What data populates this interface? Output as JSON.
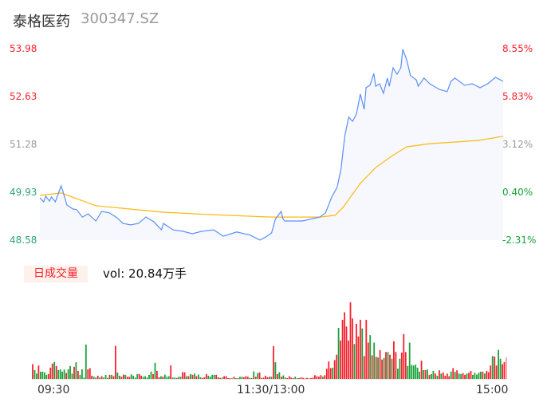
{
  "header": {
    "name": "泰格医药",
    "code": "300347.SZ"
  },
  "colors": {
    "up": "#f5222d",
    "down": "#19a33a",
    "flat": "#999999",
    "left_down": "#2ea27a",
    "price_line": "#5b8ff9",
    "avg_line": "#fbb911",
    "area": "#f6f8fe"
  },
  "volume": {
    "label": "日成交量",
    "summary": "vol: 20.84万手"
  },
  "chart_data": {
    "type": "line",
    "price_axis": {
      "ticks": [
        "53.98",
        "52.63",
        "51.28",
        "49.93",
        "48.58"
      ],
      "range": [
        48.58,
        53.98
      ]
    },
    "pct_axis": {
      "ticks": [
        "8.55%",
        "5.83%",
        "3.12%",
        "0.40%",
        "-2.31%"
      ]
    },
    "x_ticks": [
      "09:30",
      "11:30/13:00",
      "15:00"
    ],
    "price": [
      [
        "09:30",
        49.77
      ],
      [
        "09:32",
        49.66
      ],
      [
        "09:33",
        49.82
      ],
      [
        "09:35",
        49.68
      ],
      [
        "09:36",
        49.8
      ],
      [
        "09:38",
        49.66
      ],
      [
        "09:41",
        50.11
      ],
      [
        "09:42",
        49.95
      ],
      [
        "09:44",
        49.57
      ],
      [
        "09:47",
        49.46
      ],
      [
        "09:49",
        49.44
      ],
      [
        "09:52",
        49.23
      ],
      [
        "09:55",
        49.32
      ],
      [
        "09:59",
        49.12
      ],
      [
        "10:02",
        49.39
      ],
      [
        "10:06",
        49.35
      ],
      [
        "10:10",
        49.21
      ],
      [
        "10:13",
        49.05
      ],
      [
        "10:17",
        49.01
      ],
      [
        "10:21",
        49.05
      ],
      [
        "10:25",
        49.23
      ],
      [
        "10:29",
        49.1
      ],
      [
        "10:33",
        48.87
      ],
      [
        "10:34",
        49.05
      ],
      [
        "10:39",
        48.87
      ],
      [
        "10:44",
        48.83
      ],
      [
        "10:49",
        48.76
      ],
      [
        "10:54",
        48.83
      ],
      [
        "11:00",
        48.87
      ],
      [
        "11:05",
        48.69
      ],
      [
        "11:12",
        48.81
      ],
      [
        "11:19",
        48.72
      ],
      [
        "11:24",
        48.58
      ],
      [
        "11:27",
        48.67
      ],
      [
        "11:30",
        48.78
      ],
      [
        "13:02",
        49.17
      ],
      [
        "13:05",
        49.39
      ],
      [
        "13:06",
        49.17
      ],
      [
        "13:07",
        49.12
      ],
      [
        "13:16",
        49.12
      ],
      [
        "13:25",
        49.23
      ],
      [
        "13:28",
        49.35
      ],
      [
        "13:31",
        49.77
      ],
      [
        "13:34",
        50.07
      ],
      [
        "13:36",
        50.58
      ],
      [
        "13:38",
        51.53
      ],
      [
        "13:40",
        52.05
      ],
      [
        "13:42",
        51.93
      ],
      [
        "13:44",
        52.14
      ],
      [
        "13:46",
        52.7
      ],
      [
        "13:48",
        52.27
      ],
      [
        "13:49",
        52.88
      ],
      [
        "13:51",
        52.95
      ],
      [
        "13:53",
        53.28
      ],
      [
        "13:54",
        52.92
      ],
      [
        "13:56",
        52.99
      ],
      [
        "13:58",
        52.72
      ],
      [
        "14:00",
        53.15
      ],
      [
        "14:01",
        52.92
      ],
      [
        "14:03",
        53.44
      ],
      [
        "14:05",
        53.26
      ],
      [
        "14:07",
        53.44
      ],
      [
        "14:08",
        53.96
      ],
      [
        "14:10",
        53.67
      ],
      [
        "14:12",
        53.22
      ],
      [
        "14:15",
        53.1
      ],
      [
        "14:16",
        52.92
      ],
      [
        "14:19",
        53.15
      ],
      [
        "14:22",
        52.99
      ],
      [
        "14:27",
        52.83
      ],
      [
        "14:31",
        52.77
      ],
      [
        "14:33",
        53.06
      ],
      [
        "14:35",
        53.15
      ],
      [
        "14:40",
        52.95
      ],
      [
        "14:44",
        52.99
      ],
      [
        "14:48",
        52.88
      ],
      [
        "14:52",
        52.99
      ],
      [
        "14:56",
        53.17
      ],
      [
        "15:00",
        53.06
      ]
    ],
    "avg_price": [
      [
        "09:30",
        49.84
      ],
      [
        "09:41",
        49.91
      ],
      [
        "09:59",
        49.55
      ],
      [
        "10:16",
        49.46
      ],
      [
        "10:33",
        49.37
      ],
      [
        "10:58",
        49.3
      ],
      [
        "11:30",
        49.23
      ],
      [
        "13:25",
        49.23
      ],
      [
        "13:33",
        49.28
      ],
      [
        "13:37",
        49.5
      ],
      [
        "13:46",
        50.18
      ],
      [
        "13:54",
        50.63
      ],
      [
        "14:02",
        50.94
      ],
      [
        "14:10",
        51.21
      ],
      [
        "14:22",
        51.3
      ],
      [
        "14:47",
        51.39
      ],
      [
        "15:00",
        51.51
      ]
    ],
    "volume_bars": {
      "values": [
        55,
        33,
        20,
        50,
        27,
        27,
        24,
        15,
        18,
        42,
        57,
        63,
        48,
        33,
        35,
        27,
        35,
        22,
        36,
        48,
        20,
        45,
        62,
        30,
        15,
        36,
        5,
        128,
        36,
        40,
        12,
        8,
        5,
        12,
        5,
        10,
        5,
        15,
        4,
        15,
        15,
        10,
        123,
        24,
        12,
        8,
        16,
        15,
        8,
        8,
        17,
        12,
        5,
        18,
        18,
        12,
        8,
        10,
        5,
        15,
        27,
        18,
        60,
        30,
        6,
        10,
        8,
        16,
        8,
        10,
        50,
        5,
        5,
        4,
        8,
        8,
        25,
        25,
        10,
        10,
        18,
        15,
        20,
        10,
        16,
        6,
        4,
        6,
        18,
        12,
        8,
        15,
        15,
        15,
        6,
        4,
        5,
        10,
        10,
        3,
        3,
        2,
        8,
        3,
        3,
        8,
        8,
        6,
        10,
        8,
        4,
        3,
        28,
        8,
        22,
        24,
        4,
        5,
        12,
        6,
        8,
        8,
        122,
        62,
        18,
        25,
        8,
        13,
        5,
        3,
        10,
        5,
        3,
        8,
        3,
        3,
        6,
        4,
        2,
        4,
        2,
        3,
        5,
        14,
        10,
        8,
        14,
        8,
        14,
        38,
        65,
        40,
        42,
        70,
        90,
        190,
        143,
        220,
        248,
        195,
        143,
        285,
        225,
        130,
        205,
        158,
        220,
        188,
        85,
        220,
        135,
        163,
        88,
        135,
        82,
        80,
        107,
        72,
        78,
        100,
        100,
        90,
        75,
        140,
        100,
        38,
        75,
        98,
        167,
        100,
        48,
        135,
        52,
        50,
        53,
        42,
        27,
        68,
        33,
        33,
        35,
        15,
        18,
        30,
        20,
        12,
        32,
        20,
        24,
        12,
        20,
        10,
        27,
        40,
        26,
        32,
        20,
        18,
        22,
        15,
        20,
        23,
        30,
        15,
        23,
        16,
        23,
        27,
        27,
        20,
        30,
        25,
        50,
        85,
        83,
        50,
        108,
        75,
        55,
        63,
        80
      ],
      "direction": "rggrggggrrrgrggggrgggrgrggggrrrggrgrgggrgrrggrrgrrggggrrgggggrgrrgrgggrggrggrrgrgrgrggrrrggggrrrgrrrrgrgrggrrrgrgrgrrrrrrgrgrgrggrrrrggrrrrrrrrrrrrgrrrrgrrgrrrrrrrgrrrgrrrgrgrgrrgrgrgrrggrrrgggggggrgrgrggrgrgrrrrgrgrggrrgrrgggggrgrrrgrrggrr"
    }
  }
}
